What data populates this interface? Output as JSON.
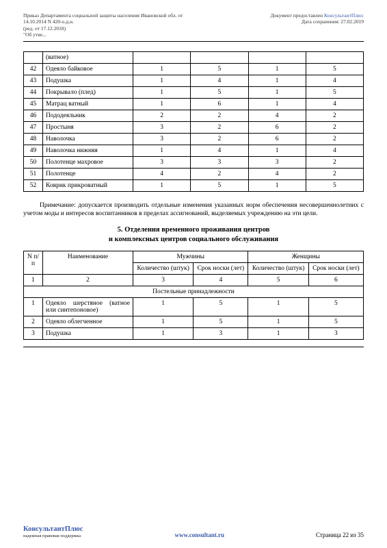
{
  "header": {
    "left_l1": "Приказ Департамента социальной защиты населения Ивановской обл. от",
    "left_l2": "14.10.2014 N 420-о.д.н.",
    "left_l3": "(ред. от 17.12.2018)",
    "left_l4": "\"Об утве...",
    "right_l1_a": "Документ предоставлен ",
    "right_l1_b": "КонсультантПлюс",
    "right_l2": "Дата сохранения: 27.02.2019"
  },
  "table1": {
    "row0": "(ватное)",
    "rows": [
      {
        "n": "42",
        "name": "Одеяло байковое",
        "c1": "1",
        "c2": "5",
        "c3": "1",
        "c4": "5"
      },
      {
        "n": "43",
        "name": "Подушка",
        "c1": "1",
        "c2": "4",
        "c3": "1",
        "c4": "4"
      },
      {
        "n": "44",
        "name": "Покрывало (плед)",
        "c1": "1",
        "c2": "5",
        "c3": "1",
        "c4": "5"
      },
      {
        "n": "45",
        "name": "Матрац ватный",
        "c1": "1",
        "c2": "6",
        "c3": "1",
        "c4": "4"
      },
      {
        "n": "46",
        "name": "Пододеяльник",
        "c1": "2",
        "c2": "2",
        "c3": "4",
        "c4": "2"
      },
      {
        "n": "47",
        "name": "Простыня",
        "c1": "3",
        "c2": "2",
        "c3": "6",
        "c4": "2"
      },
      {
        "n": "48",
        "name": "Наволочка",
        "c1": "3",
        "c2": "2",
        "c3": "6",
        "c4": "2"
      },
      {
        "n": "49",
        "name": "Наволочка нижняя",
        "c1": "1",
        "c2": "4",
        "c3": "1",
        "c4": "4"
      },
      {
        "n": "50",
        "name": "Полотенце махровое",
        "c1": "3",
        "c2": "3",
        "c3": "3",
        "c4": "2"
      },
      {
        "n": "51",
        "name": "Полотенце",
        "c1": "4",
        "c2": "2",
        "c3": "4",
        "c4": "2"
      },
      {
        "n": "52",
        "name": "Коврик прикроватный",
        "c1": "1",
        "c2": "5",
        "c3": "1",
        "c4": "5"
      }
    ]
  },
  "note": "Примечание: допускается производить отдельные изменения указанных норм обеспечения несовершеннолетних с учетом моды и интересов воспитанников в пределах ассигнований, выделяемых учреждению на эти цели.",
  "section_title_l1": "5. Отделения временного проживания центров",
  "section_title_l2": "и комплексных центров социального обслуживания",
  "table2": {
    "h_n": "N п/п",
    "h_name": "Наименование",
    "h_m": "Мужчины",
    "h_f": "Женщины",
    "h_qty": "Количество (штук)",
    "h_term": "Срок носки (лет)",
    "idx": {
      "c0": "1",
      "c1": "2",
      "c2": "3",
      "c3": "4",
      "c4": "5",
      "c5": "6"
    },
    "group1": "Постельные принадлежности",
    "rows": [
      {
        "n": "1",
        "name": "Одеяло шерстяное (ватное или синтепоновое)",
        "c1": "1",
        "c2": "5",
        "c3": "1",
        "c4": "5"
      },
      {
        "n": "2",
        "name": "Одеяло облегченное",
        "c1": "1",
        "c2": "5",
        "c3": "1",
        "c4": "5"
      },
      {
        "n": "3",
        "name": "Подушка",
        "c1": "1",
        "c2": "3",
        "c3": "1",
        "c4": "3"
      }
    ]
  },
  "footer": {
    "brand": "КонсультантПлюс",
    "tag": "надежная правовая поддержка",
    "url": "www.consultant.ru",
    "page": "Страница 22 из 35"
  }
}
